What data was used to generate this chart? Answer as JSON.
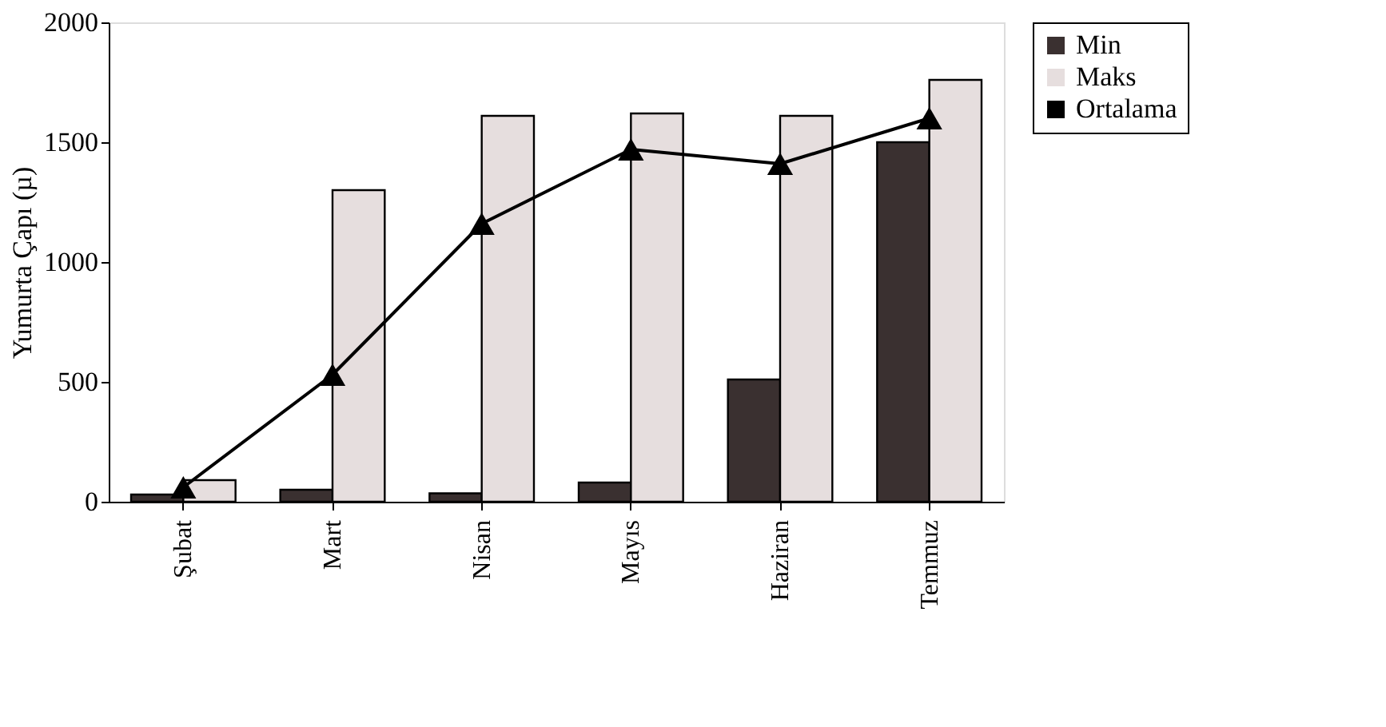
{
  "chart_data": {
    "type": "bar",
    "ylabel": "Yumurta Çapı (µ)",
    "categories": [
      "Şubat",
      "Mart",
      "Nisan",
      "Mayıs",
      "Haziran",
      "Temmuz"
    ],
    "series": [
      {
        "name": "Min",
        "color": "#3a3030",
        "values": [
          30,
          50,
          35,
          80,
          510,
          1500
        ]
      },
      {
        "name": "Maks",
        "color": "#e6dede",
        "values": [
          90,
          1300,
          1610,
          1620,
          1610,
          1760
        ]
      },
      {
        "name": "Ortalama",
        "type": "line",
        "color": "#000000",
        "marker": "triangle",
        "values": [
          60,
          530,
          1160,
          1470,
          1410,
          1600
        ]
      }
    ],
    "ylim": [
      0,
      2000
    ],
    "yticks": [
      0,
      500,
      1000,
      1500,
      2000
    ],
    "grid": false,
    "legend": "right"
  }
}
